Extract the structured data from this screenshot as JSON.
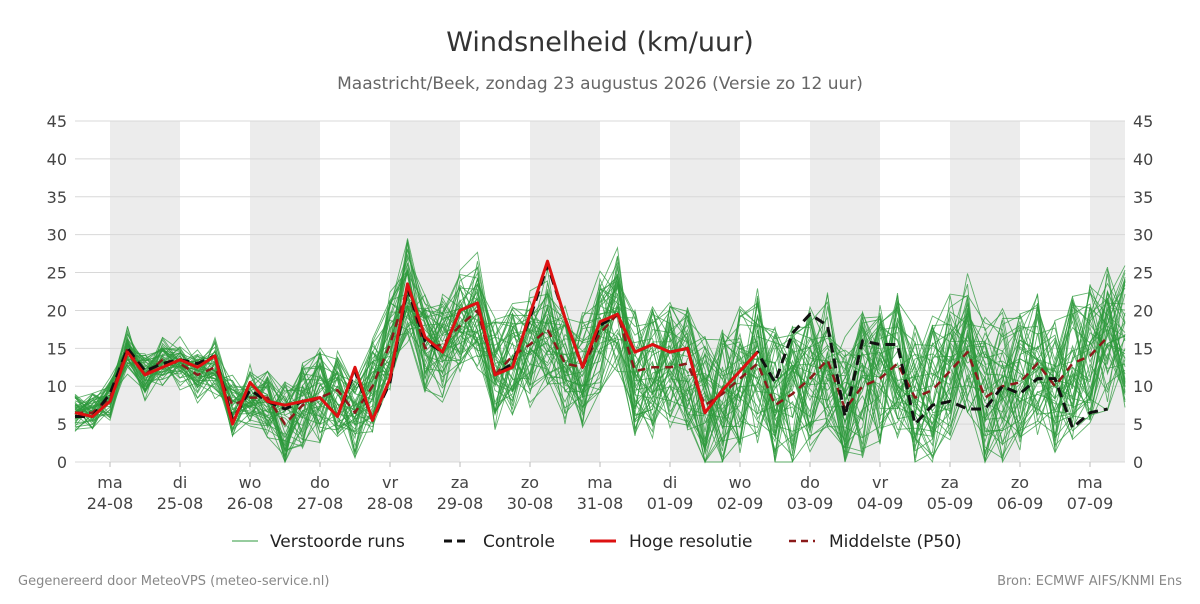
{
  "chart_data": {
    "type": "line",
    "title": "Windsnelheid (km/uur)",
    "subtitle": "Maastricht/Beek, zondag 23 augustus 2026 (Versie zo 12 uur)",
    "ylim": [
      0,
      45
    ],
    "y_ticks": [
      0,
      5,
      10,
      15,
      20,
      25,
      30,
      35,
      40,
      45
    ],
    "grid": true,
    "x_range": [
      "2026-08-23T12:00",
      "2026-09-07T12:00"
    ],
    "x_step_hours": 6,
    "x_ticks": [
      {
        "date": "2026-08-24",
        "day": "ma",
        "label": "24-08"
      },
      {
        "date": "2026-08-25",
        "day": "di",
        "label": "25-08"
      },
      {
        "date": "2026-08-26",
        "day": "wo",
        "label": "26-08"
      },
      {
        "date": "2026-08-27",
        "day": "do",
        "label": "27-08"
      },
      {
        "date": "2026-08-28",
        "day": "vr",
        "label": "28-08"
      },
      {
        "date": "2026-08-29",
        "day": "za",
        "label": "29-08"
      },
      {
        "date": "2026-08-30",
        "day": "zo",
        "label": "30-08"
      },
      {
        "date": "2026-08-31",
        "day": "ma",
        "label": "31-08"
      },
      {
        "date": "2026-09-01",
        "day": "di",
        "label": "01-09"
      },
      {
        "date": "2026-09-02",
        "day": "wo",
        "label": "02-09"
      },
      {
        "date": "2026-09-03",
        "day": "do",
        "label": "03-09"
      },
      {
        "date": "2026-09-04",
        "day": "vr",
        "label": "04-09"
      },
      {
        "date": "2026-09-05",
        "day": "za",
        "label": "05-09"
      },
      {
        "date": "2026-09-06",
        "day": "zo",
        "label": "06-09"
      },
      {
        "date": "2026-09-07",
        "day": "ma",
        "label": "07-09"
      }
    ],
    "legend_position": "bottom",
    "series": [
      {
        "name": "Hoge resolutie",
        "color": "#dd1111",
        "style": "solid",
        "values": [
          6.5,
          6,
          8,
          14.5,
          11.5,
          12.5,
          13.5,
          12.5,
          14,
          5,
          10.5,
          8,
          7.5,
          8,
          8.5,
          6,
          12.5,
          5.5,
          11,
          23.5,
          16.5,
          14.5,
          20,
          21,
          11.5,
          12.5,
          19.5,
          26.5,
          19,
          12.5,
          18.5,
          19.5,
          14.5,
          15.5,
          14.5,
          15,
          6.5,
          9.5,
          12,
          14.5
        ]
      },
      {
        "name": "Controle",
        "color": "#111111",
        "style": "dashed",
        "values": [
          6,
          6,
          9,
          15,
          12,
          13,
          13.5,
          13,
          14,
          5.5,
          9.5,
          8,
          7,
          8,
          8.5,
          6,
          12,
          5.5,
          10.5,
          23,
          16,
          14.5,
          20,
          21,
          11.5,
          13,
          19,
          26,
          19,
          12.5,
          18,
          19.5,
          14.5,
          15.5,
          14.5,
          15,
          6.5,
          9.5,
          12,
          14.5,
          10.5,
          17,
          19.5,
          18,
          6,
          16,
          15.5,
          15.5,
          5,
          7.5,
          8,
          7,
          7,
          10,
          9,
          11,
          11,
          4.5,
          6.5,
          7
        ]
      },
      {
        "name": "Middelste (P50)",
        "color": "#8b1a1a",
        "style": "dashed",
        "values": [
          6.5,
          6.5,
          8.5,
          15,
          11.5,
          13.5,
          13,
          11.5,
          12.5,
          7.5,
          8.5,
          8.5,
          5,
          7.5,
          8.5,
          9.5,
          6.5,
          10,
          15.5,
          23,
          15,
          15.5,
          18,
          20,
          11.5,
          14,
          15.5,
          17.5,
          13,
          12.5,
          17,
          19.5,
          12,
          12.5,
          12.5,
          13,
          7.5,
          9,
          11,
          13,
          7.5,
          9,
          11,
          13.5,
          7,
          10,
          11,
          13,
          8.5,
          9.5,
          12,
          14.5,
          8.5,
          10,
          10.5,
          13,
          10,
          13,
          14,
          16.5
        ]
      }
    ],
    "ensemble": {
      "name": "Verstoorde runs",
      "color": "#2e9a3c",
      "members": 50,
      "min": 0,
      "max": 40
    }
  },
  "legend": {
    "ensemble_label": "Verstoorde runs",
    "control_label": "Controle",
    "hires_label": "Hoge resolutie",
    "median_label": "Middelste (P50)"
  },
  "footer": {
    "left": "Gegenereerd door MeteoVPS (meteo-service.nl)",
    "right": "Bron: ECMWF AIFS/KNMI Ens"
  }
}
